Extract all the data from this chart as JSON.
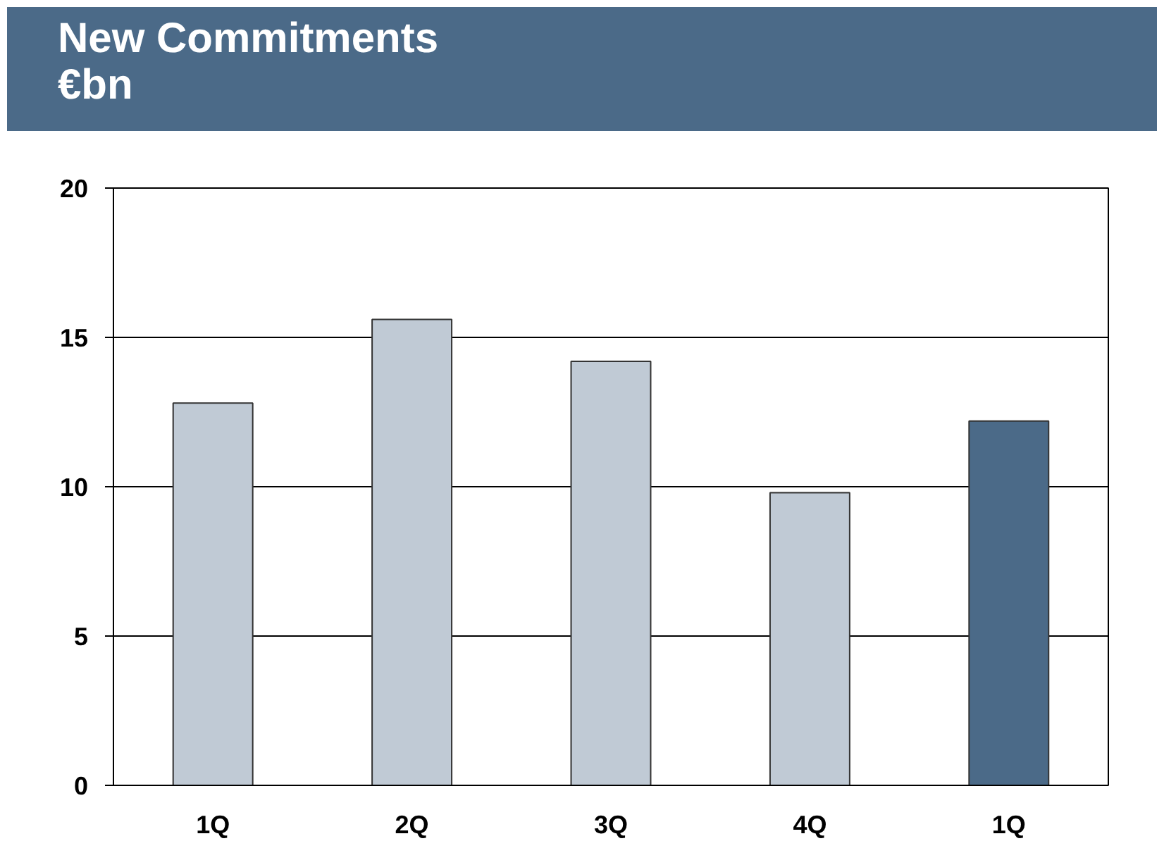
{
  "chart_data": {
    "type": "bar",
    "title": "New Commitments",
    "subtitle": "€bn",
    "categories": [
      "1Q",
      "2Q",
      "3Q",
      "4Q",
      "1Q"
    ],
    "values": [
      12.8,
      15.6,
      14.2,
      9.8,
      12.2
    ],
    "colors": [
      "#c0cad5",
      "#c0cad5",
      "#c0cad5",
      "#c0cad5",
      "#4b6a88"
    ],
    "ylim": [
      0,
      20
    ],
    "yticks": [
      0,
      5,
      10,
      15,
      20
    ],
    "grid": "y"
  }
}
